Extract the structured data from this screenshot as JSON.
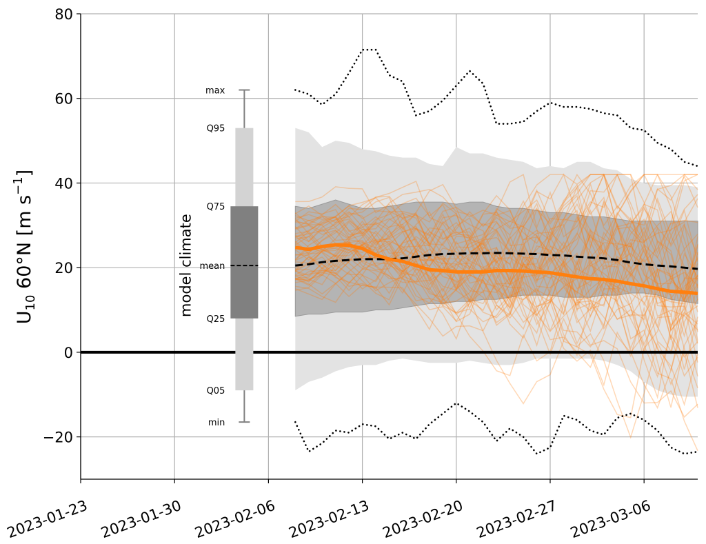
{
  "chart_data": {
    "type": "line",
    "title": "",
    "ylabel": "U10 60°N [m s−1]",
    "ylabel_parts": {
      "var": "U",
      "sub": "10",
      "rest": " 60°N [m s",
      "sup": "−1",
      "close": "]"
    },
    "xlabel": "",
    "ylim": [
      -30,
      80
    ],
    "yticks": [
      -20,
      0,
      20,
      40,
      60,
      80
    ],
    "ytick_labels": [
      "−20",
      "0",
      "20",
      "40",
      "60",
      "80"
    ],
    "xlim_days_from_2023-01-23": [
      0,
      46
    ],
    "xticks_days": [
      0,
      7,
      14,
      21,
      28,
      35,
      42
    ],
    "xtick_labels": [
      "2023-01-23",
      "2023-01-30",
      "2023-02-06",
      "2023-02-13",
      "2023-02-20",
      "2023-02-27",
      "2023-03-06"
    ],
    "grid": true,
    "zero_line": 0,
    "model_climate_box": {
      "title": "model climate",
      "center_day": 12.2,
      "min": -16.5,
      "q05": -9,
      "q25": 8,
      "mean": 20.5,
      "q75": 34.5,
      "q95": 53,
      "max": 62,
      "labels": {
        "max": "max",
        "q95": "Q95",
        "q75": "Q75",
        "mean": "mean",
        "q25": "Q25",
        "q05": "Q05",
        "min": "min"
      }
    },
    "x_days": [
      16,
      17,
      18,
      19,
      20,
      21,
      22,
      23,
      24,
      25,
      26,
      27,
      28,
      29,
      30,
      31,
      32,
      33,
      34,
      35,
      36,
      37,
      38,
      39,
      40,
      41,
      42,
      43,
      44,
      45,
      46
    ],
    "series": [
      {
        "name": "climate max",
        "style": "dotted",
        "color": "#000000",
        "values": [
          62,
          61,
          58.5,
          61,
          66,
          71.5,
          71.5,
          65.5,
          64,
          56,
          57,
          59.5,
          63,
          66.5,
          63.5,
          54,
          54,
          54.5,
          57,
          59,
          58,
          58,
          57.5,
          56.5,
          56,
          53,
          52.5,
          49.5,
          48,
          45,
          44
        ]
      },
      {
        "name": "climate Q95",
        "style": "band-upper",
        "values": [
          53,
          52,
          48.5,
          50,
          49.5,
          48,
          47.5,
          46.5,
          46,
          46,
          44.5,
          44,
          48.5,
          47,
          47,
          46,
          45.5,
          45,
          43.5,
          44,
          43.5,
          45,
          45,
          43.5,
          43,
          41,
          40,
          39.5,
          39.5,
          39.5,
          39
        ]
      },
      {
        "name": "climate Q75",
        "style": "band-upper",
        "values": [
          34.5,
          34,
          35,
          36,
          35,
          34,
          34,
          34.5,
          35,
          35.5,
          35.5,
          35.5,
          35,
          35.5,
          35.5,
          34.5,
          34,
          34,
          33.5,
          33,
          33,
          32.5,
          32,
          32,
          31.5,
          31,
          31,
          31,
          31,
          31,
          31
        ]
      },
      {
        "name": "climate mean",
        "style": "dashed",
        "color": "#000000",
        "values": [
          20.5,
          20.8,
          21.3,
          21.6,
          21.8,
          22,
          22,
          22,
          22.2,
          22.6,
          23,
          23.2,
          23.3,
          23.4,
          23.4,
          23.5,
          23.4,
          23.3,
          23.2,
          23,
          22.9,
          22.6,
          22.4,
          22.2,
          21.8,
          21.2,
          20.8,
          20.5,
          20.3,
          20,
          19.7
        ]
      },
      {
        "name": "climate Q25",
        "style": "band-lower",
        "values": [
          8.5,
          9,
          9,
          9.5,
          9.5,
          9.5,
          10,
          10,
          10.5,
          11,
          11.5,
          11.5,
          12,
          12,
          12.5,
          12.5,
          13,
          13.5,
          13.5,
          13.5,
          13,
          13,
          13,
          13.5,
          13.5,
          14,
          14,
          13.5,
          12.5,
          12,
          11.5
        ]
      },
      {
        "name": "climate Q05",
        "style": "band-lower",
        "values": [
          -9,
          -7,
          -6,
          -4.5,
          -3.5,
          -3,
          -3,
          -2,
          -1.5,
          -2,
          -2.5,
          -2.5,
          -2.5,
          -2,
          -2.5,
          -3,
          -3,
          -2.5,
          -1.5,
          -1.5,
          -1.5,
          -1.5,
          -1.5,
          -2,
          -3,
          -4.5,
          -7,
          -9,
          -10,
          -10.5,
          -10.5
        ]
      },
      {
        "name": "climate min",
        "style": "dotted",
        "color": "#000000",
        "values": [
          -16.5,
          -23.5,
          -21.5,
          -18.5,
          -19,
          -17,
          -17.5,
          -20.5,
          -19,
          -20.5,
          -17,
          -14.5,
          -12,
          -14,
          -16.5,
          -21,
          -18,
          -20,
          -24,
          -22.5,
          -15,
          -16,
          -18.5,
          -19.5,
          -15.5,
          -14.5,
          -16,
          -18.5,
          -22.5,
          -24,
          -23.5
        ]
      },
      {
        "name": "ensemble mean",
        "style": "thick",
        "color": "#ff7f0e",
        "values": [
          24.8,
          24.3,
          25,
          25.4,
          25.3,
          24.5,
          23,
          22,
          21.5,
          20.5,
          19.5,
          19.3,
          19,
          19,
          19,
          19.3,
          19.3,
          19.2,
          19,
          18.8,
          18.3,
          17.8,
          17.4,
          17.2,
          16.8,
          16.2,
          15.7,
          15,
          14.4,
          14.2,
          13.9
        ]
      }
    ],
    "ensemble_members": {
      "count": 50,
      "color": "#ff7f0e",
      "opacity": 0.3,
      "note": "individual forecast members"
    },
    "colors": {
      "outer_band": "#e3e3e3",
      "inner_band": "#b4b4b4",
      "inner_band_edge": "#999999",
      "box_outer": "#d3d3d3",
      "box_inner": "#808080",
      "whisker": "#808080",
      "grid": "#b0b0b0",
      "orange": "#ff7f0e"
    }
  }
}
